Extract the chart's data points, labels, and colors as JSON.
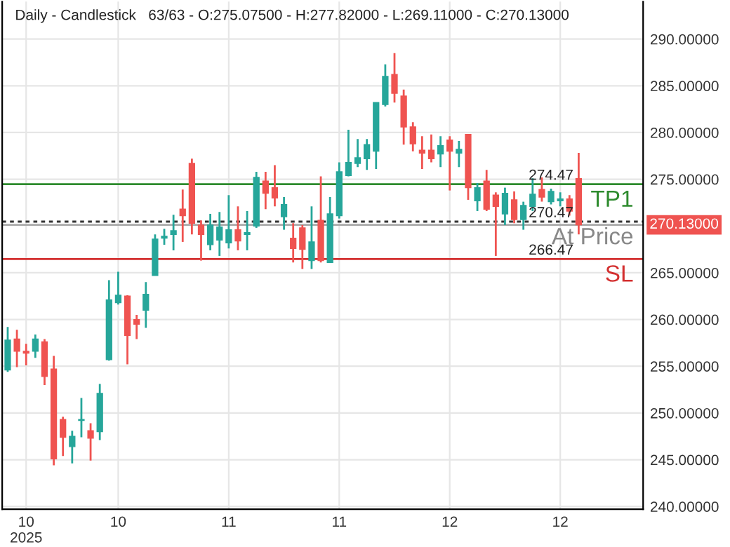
{
  "chart_data": {
    "type": "candlestick",
    "title": "Daily - Candlestick   63/63 - O:275.07500 - H:277.82000 - L:269.11000 - C:270.13000",
    "categories": [
      null,
      null,
      "10\n2025",
      null,
      null,
      null,
      null,
      null,
      null,
      null,
      null,
      null,
      "10",
      null,
      null,
      null,
      null,
      null,
      null,
      null,
      null,
      null,
      null,
      null,
      "11",
      null,
      null,
      null,
      null,
      null,
      null,
      null,
      null,
      null,
      null,
      null,
      "11",
      null,
      null,
      null,
      null,
      null,
      null,
      null,
      null,
      null,
      null,
      null,
      "12",
      null,
      null,
      null,
      null,
      null,
      null,
      null,
      null,
      null,
      null,
      null,
      "12",
      null,
      null
    ],
    "ohlc": [
      [
        254.6,
        259.2,
        254.4,
        257.8
      ],
      [
        257.9,
        258.9,
        254.9,
        256.6
      ],
      [
        256.6,
        257.4,
        255.1,
        256.4
      ],
      [
        256.6,
        258.4,
        255.9,
        257.9
      ],
      [
        257.6,
        257.9,
        253.0,
        253.9
      ],
      [
        254.7,
        256.1,
        244.4,
        245.1
      ],
      [
        249.3,
        249.6,
        245.4,
        247.4
      ],
      [
        246.4,
        248.1,
        244.6,
        247.5
      ],
      [
        249.2,
        251.6,
        247.4,
        249.3
      ],
      [
        248.1,
        248.9,
        244.9,
        247.3
      ],
      [
        248.0,
        253.1,
        247.1,
        252.1
      ],
      [
        255.7,
        264.2,
        255.6,
        262.1
      ],
      [
        261.8,
        265.1,
        261.6,
        262.6
      ],
      [
        262.5,
        262.6,
        255.2,
        258.3
      ],
      [
        260.0,
        260.5,
        257.9,
        259.5
      ],
      [
        261.0,
        264.0,
        259.1,
        262.7
      ],
      [
        264.7,
        269.1,
        264.7,
        268.6
      ],
      [
        268.7,
        269.7,
        268.0,
        268.9
      ],
      [
        269.1,
        271.2,
        267.4,
        269.5
      ],
      [
        271.8,
        273.9,
        268.3,
        271.1
      ],
      [
        276.7,
        277.2,
        269.1,
        270.3
      ],
      [
        270.1,
        270.6,
        266.3,
        269.1
      ],
      [
        268.0,
        271.3,
        267.4,
        270.1
      ],
      [
        268.5,
        271.5,
        266.8,
        269.9
      ],
      [
        268.2,
        273.3,
        267.6,
        269.6
      ],
      [
        269.6,
        272.1,
        267.4,
        268.4
      ],
      [
        269.1,
        271.6,
        267.4,
        269.3
      ],
      [
        270.0,
        275.8,
        269.8,
        275.2
      ],
      [
        274.8,
        275.8,
        271.8,
        273.5
      ],
      [
        274.1,
        276.5,
        272.1,
        273.0
      ],
      [
        271.0,
        273.1,
        269.6,
        272.3
      ],
      [
        268.7,
        270.3,
        266.1,
        267.6
      ],
      [
        269.8,
        270.1,
        265.4,
        267.5
      ],
      [
        266.3,
        272.1,
        265.4,
        268.3
      ],
      [
        270.6,
        275.3,
        266.1,
        266.3
      ],
      [
        266.1,
        273.1,
        266.1,
        271.3
      ],
      [
        271.1,
        276.8,
        270.8,
        275.8
      ],
      [
        275.4,
        280.3,
        275.3,
        276.8
      ],
      [
        276.7,
        279.3,
        276.3,
        277.3
      ],
      [
        277.2,
        279.3,
        276.0,
        278.7
      ],
      [
        278.0,
        283.2,
        276.1,
        283.2
      ],
      [
        283.0,
        287.3,
        282.8,
        286.0
      ],
      [
        286.2,
        288.5,
        283.2,
        284.2
      ],
      [
        283.9,
        284.6,
        278.7,
        280.6
      ],
      [
        280.6,
        281.1,
        278.0,
        278.8
      ],
      [
        278.1,
        279.6,
        276.1,
        277.8
      ],
      [
        278.1,
        279.8,
        276.8,
        277.2
      ],
      [
        277.7,
        279.6,
        276.3,
        278.6
      ],
      [
        279.2,
        279.6,
        273.8,
        278.0
      ],
      [
        277.8,
        279.1,
        276.3,
        278.2
      ],
      [
        279.8,
        279.8,
        272.8,
        274.1
      ],
      [
        272.7,
        274.6,
        271.6,
        274.1
      ],
      [
        274.8,
        276.0,
        271.6,
        271.8
      ],
      [
        273.3,
        273.6,
        266.8,
        272.1
      ],
      [
        271.3,
        274.1,
        270.1,
        273.5
      ],
      [
        272.8,
        273.7,
        270.3,
        270.7
      ],
      [
        270.7,
        272.6,
        269.6,
        272.2
      ],
      [
        272.1,
        275.1,
        271.6,
        273.4
      ],
      [
        273.9,
        275.2,
        272.6,
        273.1
      ],
      [
        272.6,
        274.0,
        272.3,
        273.7
      ],
      [
        272.7,
        273.6,
        272.1,
        272.9
      ],
      [
        272.9,
        273.3,
        271.1,
        271.6
      ],
      [
        275.075,
        277.82,
        269.11,
        270.13
      ]
    ],
    "colors": [
      "#26a69a",
      "#ef5350",
      "#ef5350",
      "#26a69a",
      "#ef5350",
      "#ef5350",
      "#ef5350",
      "#26a69a",
      "#26a69a",
      "#ef5350",
      "#26a69a",
      "#26a69a",
      "#26a69a",
      "#ef5350",
      "#ef5350",
      "#26a69a",
      "#26a69a",
      "#26a69a",
      "#26a69a",
      "#ef5350",
      "#ef5350",
      "#ef5350",
      "#26a69a",
      "#26a69a",
      "#26a69a",
      "#ef5350",
      "#26a69a",
      "#26a69a",
      "#ef5350",
      "#ef5350",
      "#26a69a",
      "#ef5350",
      "#ef5350",
      "#26a69a",
      "#ef5350",
      "#26a69a",
      "#26a69a",
      "#26a69a",
      "#26a69a",
      "#26a69a",
      "#26a69a",
      "#26a69a",
      "#ef5350",
      "#ef5350",
      "#ef5350",
      "#ef5350",
      "#ef5350",
      "#26a69a",
      "#ef5350",
      "#26a69a",
      "#ef5350",
      "#26a69a",
      "#ef5350",
      "#ef5350",
      "#26a69a",
      "#ef5350",
      "#26a69a",
      "#26a69a",
      "#ef5350",
      "#26a69a",
      "#26a69a",
      "#ef5350",
      "#ef5350"
    ],
    "ylim": [
      239.7,
      294.0
    ],
    "yticks": [
      {
        "value": 240,
        "label": "240.00000"
      },
      {
        "value": 245,
        "label": "245.00000"
      },
      {
        "value": 250,
        "label": "250.00000"
      },
      {
        "value": 255,
        "label": "255.00000"
      },
      {
        "value": 260,
        "label": "260.00000"
      },
      {
        "value": 265,
        "label": "265.00000"
      },
      {
        "value": 275,
        "label": "275.00000"
      },
      {
        "value": 280,
        "label": "280.00000"
      },
      {
        "value": 285,
        "label": "285.00000"
      },
      {
        "value": 290,
        "label": "290.00000"
      }
    ],
    "ref_lines": [
      {
        "axis": "y",
        "value": 274.47,
        "label": "TP1",
        "color": "#2e8b2e",
        "line_style": "solid"
      },
      {
        "axis": "y",
        "value": 270.47,
        "label": "At Price",
        "color": "#333333",
        "line_style": "dotted"
      },
      {
        "axis": "y",
        "value": 270.13,
        "label": "270.13000",
        "color": "#aaaaaa",
        "line_style": "solid"
      },
      {
        "axis": "y",
        "value": 266.47,
        "label": "SL",
        "color": "#d32f2f",
        "line_style": "solid"
      }
    ],
    "annotations": [
      {
        "text": "274.47",
        "y": 274.47
      },
      {
        "text": "270.47",
        "y": 270.47
      },
      {
        "text": "266.47",
        "y": 266.47
      }
    ],
    "grid": true
  }
}
